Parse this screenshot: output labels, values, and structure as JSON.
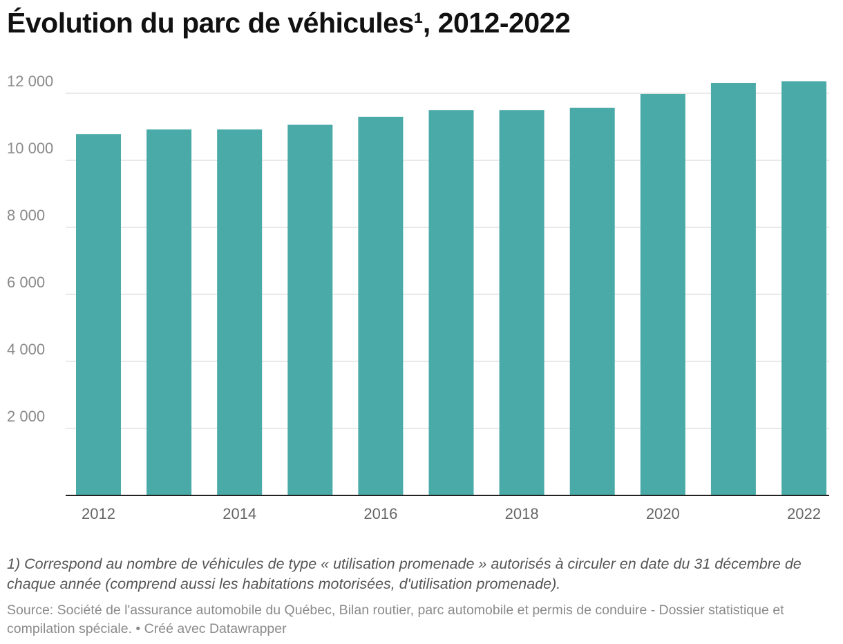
{
  "title": "Évolution du parc de véhicules¹, 2012-2022",
  "note": "1) Correspond au nombre de véhicules de type « utilisation promenade » autorisés à circuler en date du 31 décembre de chaque année (comprend aussi les habitations motorisées, d'utilisation promenade).",
  "source": "Source: Société de l'assurance automobile du Québec, Bilan routier, parc automobile et permis de conduire - Dossier statistique et compilation spéciale. • Créé avec Datawrapper",
  "colors": {
    "bar": "#49aaa8",
    "grid": "#e2e2e2",
    "axis": "#222222"
  },
  "chart_data": {
    "type": "bar",
    "categories": [
      "2012",
      "2013",
      "2014",
      "2015",
      "2016",
      "2017",
      "2018",
      "2019",
      "2020",
      "2021",
      "2022"
    ],
    "values": [
      10780,
      10920,
      10920,
      11060,
      11300,
      11500,
      11500,
      11570,
      11980,
      12310,
      12360
    ],
    "x_tick_labels": [
      "2012",
      "2014",
      "2016",
      "2018",
      "2020",
      "2022"
    ],
    "y_ticks": [
      2000,
      4000,
      6000,
      8000,
      10000,
      12000
    ],
    "y_tick_labels": [
      "2 000",
      "4 000",
      "6 000",
      "8 000",
      "10 000",
      "12 000"
    ],
    "ylim": [
      0,
      13000
    ],
    "grid": true,
    "xlabel": "",
    "ylabel": ""
  }
}
